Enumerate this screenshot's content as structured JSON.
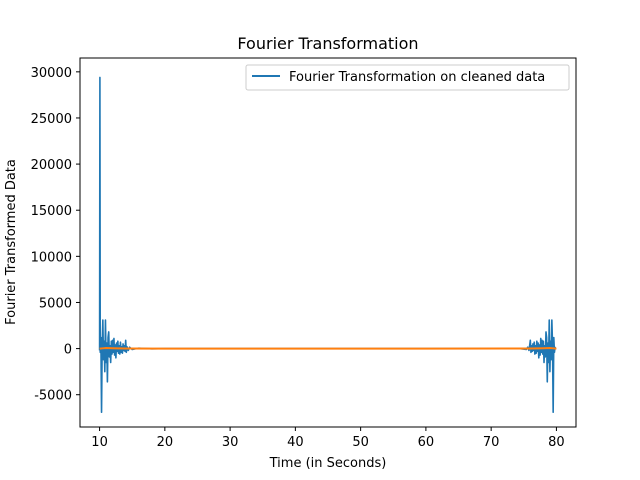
{
  "chart_data": {
    "type": "line",
    "title": "Fourier Transformation",
    "xlabel": "Time (in Seconds)",
    "ylabel": "Fourier Transformed Data",
    "xlim": [
      7,
      83
    ],
    "ylim": [
      -8500,
      31500
    ],
    "xticks": [
      10,
      20,
      30,
      40,
      50,
      60,
      70,
      80
    ],
    "yticks": [
      -5000,
      0,
      5000,
      10000,
      15000,
      20000,
      25000,
      30000
    ],
    "legend_position": "top-right",
    "grid": false,
    "series": [
      {
        "name": "Fourier Transformation on cleaned data",
        "color": "#1f77b4",
        "points": [
          [
            10.0,
            -200
          ],
          [
            10.05,
            29400
          ],
          [
            10.1,
            -400
          ],
          [
            10.2,
            1200
          ],
          [
            10.3,
            -6900
          ],
          [
            10.4,
            500
          ],
          [
            10.5,
            3100
          ],
          [
            10.6,
            -1200
          ],
          [
            10.7,
            800
          ],
          [
            10.8,
            -2500
          ],
          [
            10.9,
            3100
          ],
          [
            11.0,
            -1500
          ],
          [
            11.1,
            600
          ],
          [
            11.2,
            -3600
          ],
          [
            11.3,
            1200
          ],
          [
            11.4,
            1800
          ],
          [
            11.5,
            -900
          ],
          [
            11.6,
            300
          ],
          [
            11.7,
            -1500
          ],
          [
            11.8,
            800
          ],
          [
            11.9,
            -600
          ],
          [
            12.0,
            900
          ],
          [
            12.1,
            -400
          ],
          [
            12.2,
            1100
          ],
          [
            12.3,
            -700
          ],
          [
            12.4,
            400
          ],
          [
            12.5,
            -1000
          ],
          [
            12.6,
            600
          ],
          [
            12.7,
            -300
          ],
          [
            12.8,
            800
          ],
          [
            12.9,
            -500
          ],
          [
            13.0,
            300
          ],
          [
            13.1,
            -600
          ],
          [
            13.2,
            700
          ],
          [
            13.3,
            -400
          ],
          [
            13.4,
            200
          ],
          [
            13.5,
            -500
          ],
          [
            13.6,
            500
          ],
          [
            13.7,
            -200
          ],
          [
            13.8,
            300
          ],
          [
            13.9,
            -300
          ],
          [
            14.0,
            900
          ],
          [
            14.1,
            -400
          ],
          [
            14.2,
            200
          ],
          [
            14.4,
            -200
          ],
          [
            14.6,
            150
          ],
          [
            15.0,
            -100
          ],
          [
            16.0,
            50
          ],
          [
            18.0,
            -20
          ],
          [
            20.0,
            0
          ],
          [
            40.0,
            0
          ],
          [
            60.0,
            0
          ],
          [
            72.0,
            0
          ],
          [
            74.0,
            30
          ],
          [
            75.4,
            -100
          ],
          [
            75.6,
            150
          ],
          [
            75.8,
            -200
          ],
          [
            76.0,
            900
          ],
          [
            76.1,
            -400
          ],
          [
            76.2,
            300
          ],
          [
            76.3,
            -300
          ],
          [
            76.4,
            500
          ],
          [
            76.5,
            -200
          ],
          [
            76.6,
            700
          ],
          [
            76.7,
            -600
          ],
          [
            76.8,
            300
          ],
          [
            76.9,
            -500
          ],
          [
            77.0,
            800
          ],
          [
            77.1,
            -300
          ],
          [
            77.2,
            600
          ],
          [
            77.3,
            -1000
          ],
          [
            77.4,
            400
          ],
          [
            77.5,
            -700
          ],
          [
            77.6,
            1100
          ],
          [
            77.7,
            -400
          ],
          [
            77.8,
            900
          ],
          [
            77.9,
            -600
          ],
          [
            78.0,
            800
          ],
          [
            78.1,
            -1500
          ],
          [
            78.2,
            300
          ],
          [
            78.3,
            -900
          ],
          [
            78.4,
            1800
          ],
          [
            78.5,
            1200
          ],
          [
            78.6,
            -3600
          ],
          [
            78.7,
            600
          ],
          [
            78.8,
            -1500
          ],
          [
            78.9,
            3100
          ],
          [
            79.0,
            -2500
          ],
          [
            79.1,
            800
          ],
          [
            79.2,
            -1200
          ],
          [
            79.3,
            3100
          ],
          [
            79.4,
            500
          ],
          [
            79.5,
            -6900
          ],
          [
            79.6,
            1200
          ],
          [
            79.7,
            -400
          ],
          [
            79.8,
            200
          ]
        ]
      },
      {
        "name": "",
        "color": "#ff7f0e",
        "points": [
          [
            10.0,
            0
          ],
          [
            10.5,
            30
          ],
          [
            11.0,
            60
          ],
          [
            12.0,
            40
          ],
          [
            13.0,
            20
          ],
          [
            14.0,
            10
          ],
          [
            20.0,
            0
          ],
          [
            40.0,
            0
          ],
          [
            60.0,
            0
          ],
          [
            76.0,
            10
          ],
          [
            77.0,
            20
          ],
          [
            78.0,
            40
          ],
          [
            79.0,
            60
          ],
          [
            79.5,
            30
          ],
          [
            80.0,
            0
          ]
        ]
      }
    ]
  }
}
